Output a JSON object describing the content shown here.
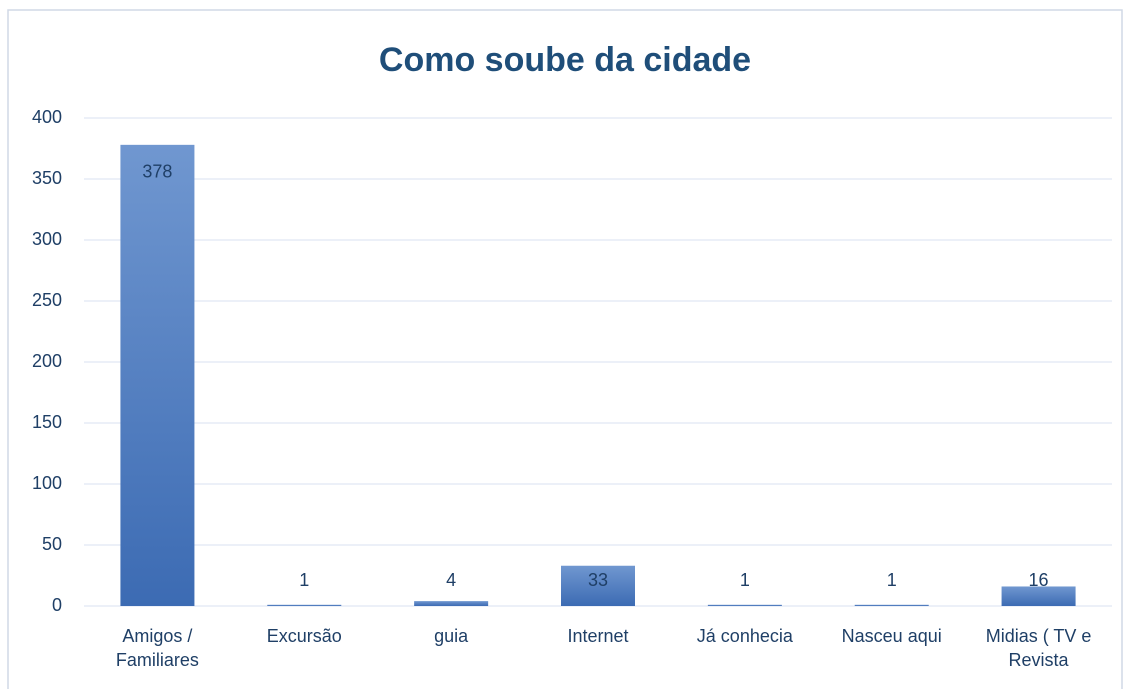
{
  "chart_data": {
    "type": "bar",
    "title": "Como soube da cidade",
    "categories": [
      "Amigos / Familiares",
      "Excursão",
      "guia",
      "Internet",
      "Já conhecia",
      "Nasceu aqui",
      "Midias ( TV e Revista"
    ],
    "values": [
      378,
      1,
      4,
      33,
      1,
      1,
      16
    ],
    "color": "#4472c4",
    "ylim": [
      0,
      400
    ],
    "yticks": [
      0,
      50,
      100,
      150,
      200,
      250,
      300,
      350,
      400
    ],
    "grid": true
  }
}
